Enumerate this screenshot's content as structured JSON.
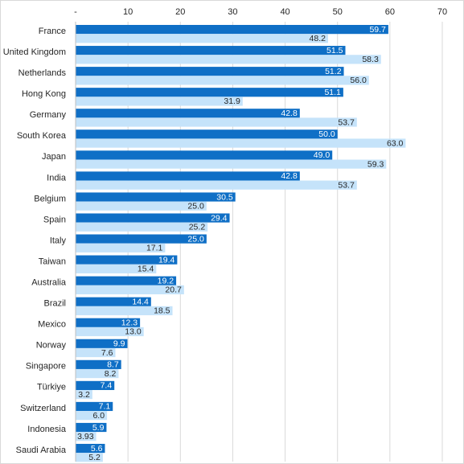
{
  "chart_data": {
    "type": "bar",
    "orientation": "horizontal",
    "title": "",
    "xlabel": "",
    "ylabel": "",
    "xlim": [
      0,
      70
    ],
    "x_ticks": [
      0,
      10,
      20,
      30,
      40,
      50,
      60,
      70
    ],
    "x_tick_labels": [
      "-",
      "10",
      "20",
      "30",
      "40",
      "50",
      "60",
      "70"
    ],
    "grid": true,
    "legend": "none",
    "categories": [
      "France",
      "United Kingdom",
      "Netherlands",
      "Hong Kong",
      "Germany",
      "South Korea",
      "Japan",
      "India",
      "Belgium",
      "Spain",
      "Italy",
      "Taiwan",
      "Australia",
      "Brazil",
      "Mexico",
      "Norway",
      "Singapore",
      "Türkiye",
      "Switzerland",
      "Indonesia",
      "Saudi Arabia"
    ],
    "series": [
      {
        "color": "#0f6fc6",
        "label_color": "#ffffff",
        "values": [
          59.7,
          51.5,
          51.2,
          51.1,
          42.8,
          50.0,
          49.0,
          42.8,
          30.5,
          29.4,
          25.0,
          19.4,
          19.2,
          14.4,
          12.3,
          9.9,
          8.7,
          7.4,
          7.1,
          5.9,
          5.6
        ],
        "labels": [
          "59.7",
          "51.5",
          "51.2",
          "51.1",
          "42.8",
          "50.0",
          "49.0",
          "42.8",
          "30.5",
          "29.4",
          "25.0",
          "19.4",
          "19.2",
          "14.4",
          "12.3",
          "9.9",
          "8.7",
          "7.4",
          "7.1",
          "5.9",
          "5.6"
        ]
      },
      {
        "color": "#c5e3fa",
        "label_color": "#262626",
        "values": [
          48.2,
          58.3,
          56.0,
          31.9,
          53.7,
          63.0,
          59.3,
          53.7,
          25.0,
          25.2,
          17.1,
          15.4,
          20.7,
          18.5,
          13.0,
          7.6,
          8.2,
          3.2,
          6.0,
          3.93,
          5.2
        ],
        "labels": [
          "48.2",
          "58.3",
          "56.0",
          "31.9",
          "53.7",
          "63.0",
          "59.3",
          "53.7",
          "25.0",
          "25.2",
          "17.1",
          "15.4",
          "20.7",
          "18.5",
          "13.0",
          "7.6",
          "8.2",
          "3.2",
          "6.0",
          "3.93",
          "5.2"
        ]
      }
    ]
  }
}
